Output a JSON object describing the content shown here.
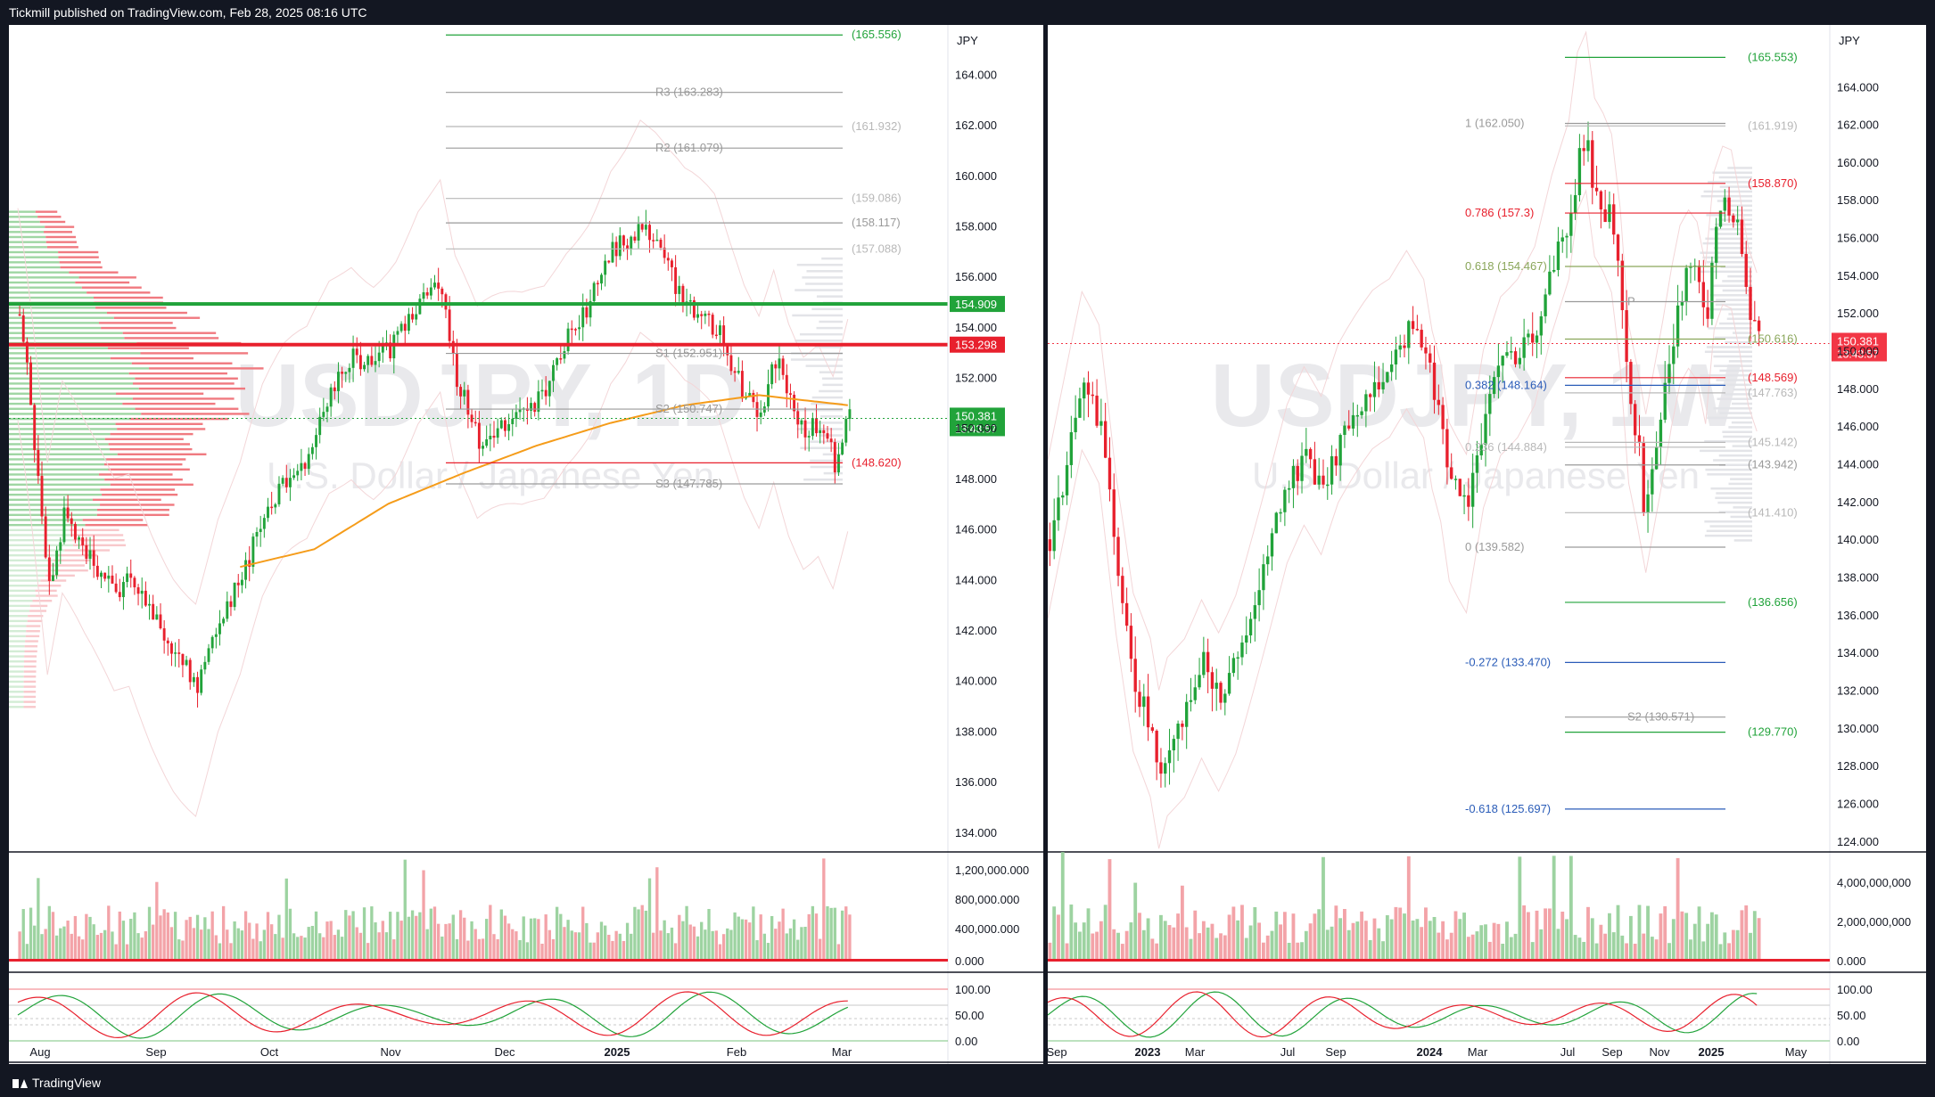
{
  "header": {
    "publisher_line": "Tickmill published on TradingView.com, Feb 28, 2025 08:16 UTC"
  },
  "footer": {
    "brand": "TradingView"
  },
  "colors": {
    "up": "#089981",
    "down": "#f23645",
    "green_bar": "#21a33a",
    "red_bar": "#e8202d",
    "ma": "#f59c1a",
    "fib_blue": "#2a5cb8",
    "pivot_gray": "#9a9a9a"
  },
  "chart_data": [
    {
      "type": "candlestick",
      "symbol": "USDJPY, 1D",
      "watermark_sub": "U.S. Dollar / Japanese Yen",
      "currency": "JPY",
      "ylim": [
        133.5,
        165.6
      ],
      "y_ticks": [
        "164.000",
        "162.000",
        "160.000",
        "158.000",
        "156.000",
        "154.000",
        "152.000",
        "150.000",
        "148.000",
        "146.000",
        "144.000",
        "142.000",
        "140.000",
        "138.000",
        "136.000",
        "134.000"
      ],
      "x_ticks": [
        "Aug",
        "Sep",
        "Oct",
        "Nov",
        "Dec",
        "2025",
        "Feb",
        "Mar"
      ],
      "close_path_anchors": [
        [
          0,
          154.5
        ],
        [
          3,
          151
        ],
        [
          8,
          143.5
        ],
        [
          12,
          146.5
        ],
        [
          18,
          145
        ],
        [
          26,
          143.5
        ],
        [
          30,
          144.2
        ],
        [
          36,
          142.5
        ],
        [
          42,
          141
        ],
        [
          48,
          139.8
        ],
        [
          54,
          142.5
        ],
        [
          60,
          144
        ],
        [
          66,
          146.5
        ],
        [
          72,
          148
        ],
        [
          78,
          149
        ],
        [
          84,
          151.5
        ],
        [
          90,
          152.8
        ],
        [
          96,
          152.5
        ],
        [
          102,
          153.5
        ],
        [
          108,
          155
        ],
        [
          114,
          155.5
        ],
        [
          118,
          152
        ],
        [
          124,
          149.5
        ],
        [
          130,
          150
        ],
        [
          136,
          150.5
        ],
        [
          142,
          151.5
        ],
        [
          148,
          153.5
        ],
        [
          154,
          155
        ],
        [
          160,
          157
        ],
        [
          164,
          157.5
        ],
        [
          168,
          158.2
        ],
        [
          172,
          157.2
        ],
        [
          176,
          156
        ],
        [
          180,
          155
        ],
        [
          184,
          154.5
        ],
        [
          188,
          154
        ],
        [
          192,
          152.5
        ],
        [
          196,
          151.2
        ],
        [
          200,
          150.5
        ],
        [
          204,
          152.8
        ],
        [
          208,
          151
        ],
        [
          212,
          149.8
        ],
        [
          216,
          150.2
        ],
        [
          220,
          148.6
        ],
        [
          224,
          150.4
        ]
      ],
      "candle_count": 225,
      "moving_average": {
        "color": "#f59c1a",
        "anchors": [
          [
            60,
            144.5
          ],
          [
            80,
            145.2
          ],
          [
            100,
            147
          ],
          [
            120,
            148.2
          ],
          [
            140,
            149.3
          ],
          [
            160,
            150.2
          ],
          [
            180,
            150.9
          ],
          [
            200,
            151.3
          ],
          [
            224,
            150.9
          ]
        ]
      },
      "price_levels": [
        {
          "label": "(165.556)",
          "value": 165.556,
          "color": "#21a33a"
        },
        {
          "label": "R3 (163.283)",
          "value": 163.283,
          "color": "#9a9a9a"
        },
        {
          "label": "(161.932)",
          "value": 161.932,
          "color": "#b8b8b8"
        },
        {
          "label": "R2 (161.079)",
          "value": 161.079,
          "color": "#9a9a9a"
        },
        {
          "label": "(159.086)",
          "value": 159.086,
          "color": "#b8b8b8"
        },
        {
          "label": "(158.117)",
          "value": 158.117,
          "color": "#9a9a9a"
        },
        {
          "label": "(157.088)",
          "value": 157.088,
          "color": "#b8b8b8"
        },
        {
          "label": "S1 (152.951)",
          "value": 152.951,
          "color": "#9a9a9a"
        },
        {
          "label": "S2 (150.747)",
          "value": 150.747,
          "color": "#9a9a9a"
        },
        {
          "label": "(148.620)",
          "value": 148.62,
          "color": "#e8202d"
        },
        {
          "label": "S3 (147.785)",
          "value": 147.785,
          "color": "#9a9a9a"
        }
      ],
      "horizontal_lines": [
        {
          "value": 154.909,
          "badge": "154.909",
          "color": "#21a33a"
        },
        {
          "value": 153.298,
          "badge": "153.298",
          "color": "#e8202d"
        }
      ],
      "current_price": {
        "value": 150.381,
        "badge": "150.381",
        "countdown": "13:43:57"
      },
      "volume": {
        "ticks": [
          "1,200,000.000",
          "800,000.000",
          "400,000.000",
          "0.000"
        ]
      },
      "oscillator": {
        "ticks": [
          "100.00",
          "50.00",
          "0.00"
        ]
      }
    },
    {
      "type": "candlestick",
      "symbol": "USDJPY, 1W",
      "watermark_sub": "U.S. Dollar / Japanese Yen",
      "currency": "JPY",
      "ylim": [
        123.8,
        166.8
      ],
      "y_ticks": [
        "164.000",
        "162.000",
        "160.000",
        "158.000",
        "156.000",
        "154.000",
        "152.000",
        "150.000",
        "148.000",
        "146.000",
        "144.000",
        "142.000",
        "140.000",
        "138.000",
        "136.000",
        "134.000",
        "132.000",
        "130.000",
        "128.000",
        "126.000",
        "124.000"
      ],
      "x_ticks": [
        "Sep",
        "2023",
        "Mar",
        "Jul",
        "Sep",
        "2024",
        "Mar",
        "Jul",
        "Sep",
        "Nov",
        "2025",
        "May"
      ],
      "close_path_anchors": [
        [
          0,
          140
        ],
        [
          4,
          144
        ],
        [
          8,
          148
        ],
        [
          12,
          146
        ],
        [
          14,
          142
        ],
        [
          16,
          138
        ],
        [
          20,
          132
        ],
        [
          24,
          130
        ],
        [
          26,
          127.5
        ],
        [
          28,
          129.5
        ],
        [
          32,
          131
        ],
        [
          36,
          133.5
        ],
        [
          40,
          132
        ],
        [
          44,
          134
        ],
        [
          48,
          137
        ],
        [
          52,
          140
        ],
        [
          56,
          143
        ],
        [
          60,
          144.5
        ],
        [
          64,
          142.5
        ],
        [
          68,
          145
        ],
        [
          72,
          146.5
        ],
        [
          76,
          148
        ],
        [
          80,
          149
        ],
        [
          84,
          151
        ],
        [
          88,
          150
        ],
        [
          90,
          147.5
        ],
        [
          92,
          146
        ],
        [
          94,
          143
        ],
        [
          98,
          141.5
        ],
        [
          102,
          147
        ],
        [
          106,
          149.5
        ],
        [
          110,
          150
        ],
        [
          114,
          151.2
        ],
        [
          118,
          154.5
        ],
        [
          122,
          157
        ],
        [
          124,
          160.5
        ],
        [
          126,
          161.5
        ],
        [
          127,
          159
        ],
        [
          129,
          157
        ],
        [
          131,
          157.5
        ],
        [
          133,
          155
        ],
        [
          134,
          152.5
        ],
        [
          136,
          146.5
        ],
        [
          138,
          144.5
        ],
        [
          139,
          141
        ],
        [
          141,
          143.5
        ],
        [
          143,
          146.5
        ],
        [
          145,
          149
        ],
        [
          147,
          152.5
        ],
        [
          149,
          154
        ],
        [
          151,
          154.5
        ],
        [
          153,
          153
        ],
        [
          154,
          151.5
        ],
        [
          156,
          156.5
        ],
        [
          158,
          157.8
        ],
        [
          160,
          157.5
        ],
        [
          162,
          155
        ],
        [
          164,
          152
        ],
        [
          166,
          150.4
        ]
      ],
      "candle_count": 167,
      "price_levels": [
        {
          "label": "(165.553)",
          "value": 165.553,
          "color": "#21a33a"
        },
        {
          "label": "1 (162.050)",
          "value": 162.05,
          "color": "#9a9a9a"
        },
        {
          "label": "(161.919)",
          "value": 161.919,
          "color": "#b8b8b8"
        },
        {
          "label": "(158.870)",
          "value": 158.87,
          "color": "#e8202d"
        },
        {
          "label": "0.786 (157.3)",
          "value": 157.3,
          "color": "#e8202d"
        },
        {
          "label": "0.618 (154.467)",
          "value": 154.467,
          "color": "#8aa65a"
        },
        {
          "label": "P",
          "value": 152.6,
          "color": "#9a9a9a"
        },
        {
          "label": "(150.616)",
          "value": 150.616,
          "color": "#8aa65a"
        },
        {
          "label": "(148.569)",
          "value": 148.569,
          "color": "#e8202d"
        },
        {
          "label": "0.382 (148.164)",
          "value": 148.164,
          "color": "#2a5cb8"
        },
        {
          "label": "(147.763)",
          "value": 147.763,
          "color": "#b8b8b8"
        },
        {
          "label": "0.236 (144.884)",
          "value": 144.884,
          "color": "#b8b8b8"
        },
        {
          "label": "(145.142)",
          "value": 145.142,
          "color": "#b8b8b8"
        },
        {
          "label": "(143.942)",
          "value": 143.942,
          "color": "#9a9a9a"
        },
        {
          "label": "(141.410)",
          "value": 141.41,
          "color": "#b8b8b8"
        },
        {
          "label": "0 (139.582)",
          "value": 139.582,
          "color": "#9a9a9a"
        },
        {
          "label": "(136.656)",
          "value": 136.656,
          "color": "#21a33a"
        },
        {
          "label": "-0.272 (133.470)",
          "value": 133.47,
          "color": "#2a5cb8"
        },
        {
          "label": "S2 (130.571)",
          "value": 130.571,
          "color": "#9a9a9a"
        },
        {
          "label": "(129.770)",
          "value": 129.77,
          "color": "#21a33a"
        },
        {
          "label": "-0.618 (125.697)",
          "value": 125.697,
          "color": "#2a5cb8"
        }
      ],
      "current_price": {
        "value": 150.381,
        "badge": "150.381",
        "countdown": "13:43:57"
      },
      "volume": {
        "ticks": [
          "4,000,000,000",
          "2,000,000,000",
          "0.000"
        ]
      },
      "oscillator": {
        "ticks": [
          "100.00",
          "50.00",
          "0.00"
        ]
      }
    }
  ]
}
